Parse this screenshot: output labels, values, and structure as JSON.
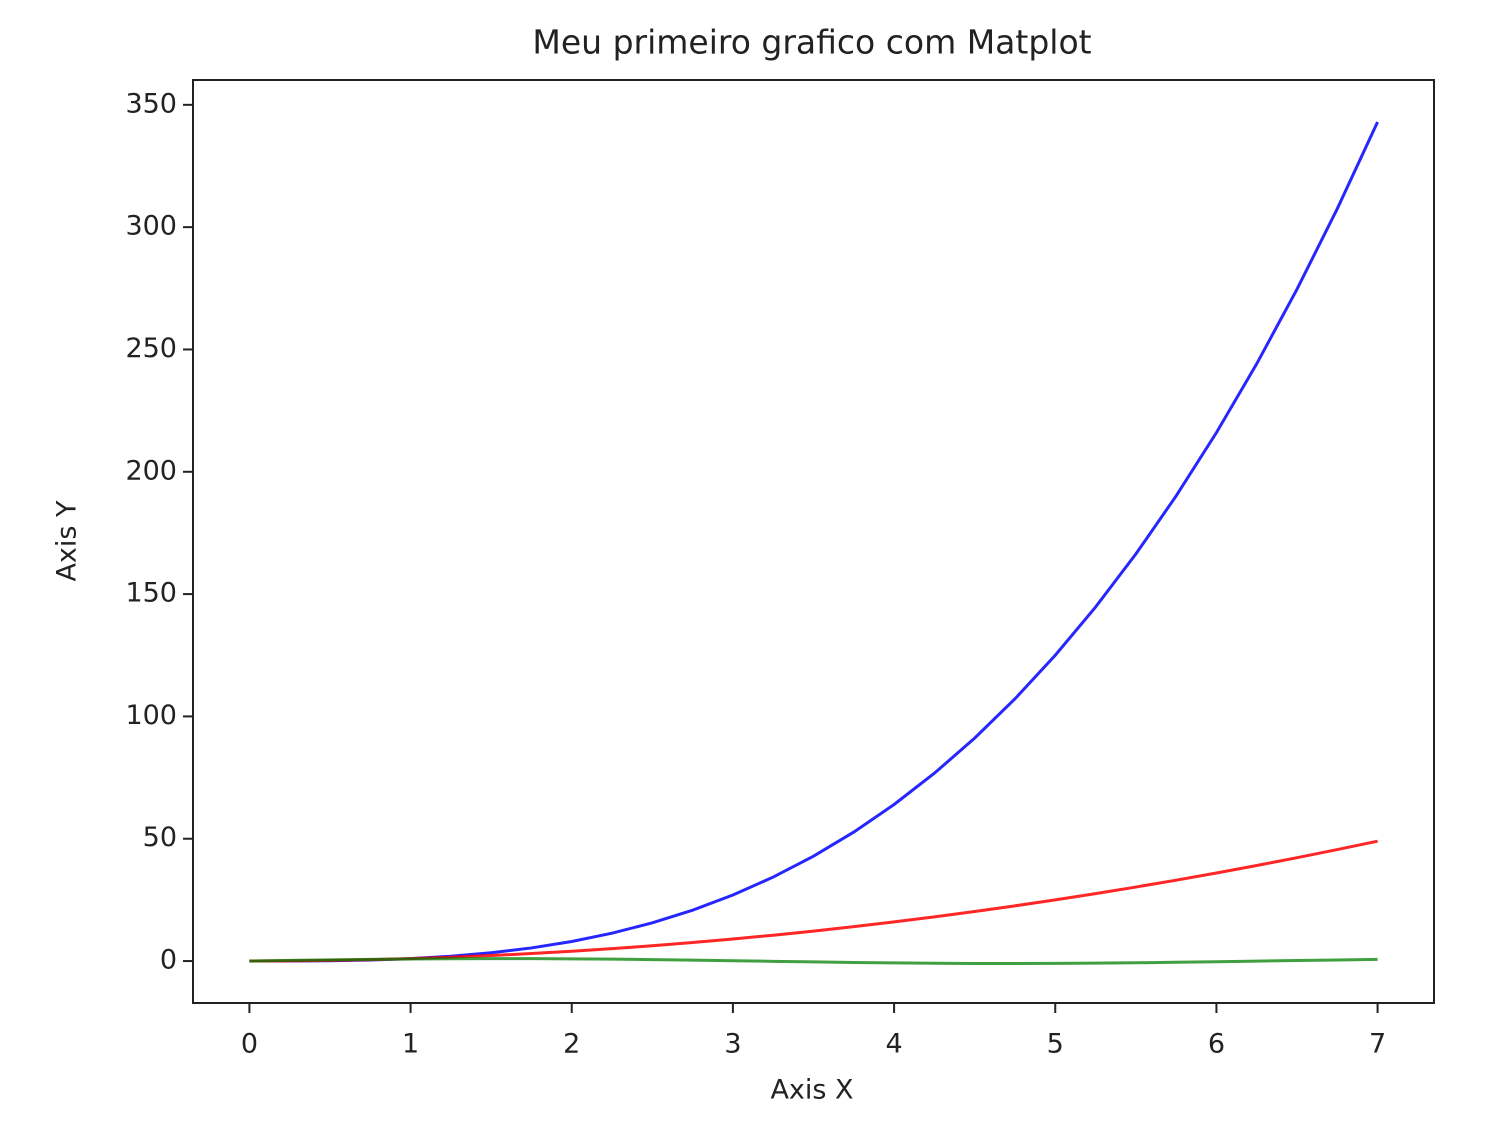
{
  "chart_data": {
    "type": "line",
    "title": "Meu primeiro grafico com Matplot",
    "x_label": "Axis X",
    "y_label": "Axis Y",
    "x": [
      0,
      0.25,
      0.5,
      0.75,
      1,
      1.25,
      1.5,
      1.75,
      2,
      2.25,
      2.5,
      2.75,
      3,
      3.25,
      3.5,
      3.75,
      4,
      4.25,
      4.5,
      4.75,
      5,
      5.25,
      5.5,
      5.75,
      6,
      6.25,
      6.5,
      6.75,
      7
    ],
    "series": [
      {
        "color": "#0000ff",
        "values": [
          0,
          0.02,
          0.13,
          0.42,
          1,
          1.95,
          3.38,
          5.36,
          8,
          11.39,
          15.63,
          20.8,
          27,
          34.33,
          42.88,
          52.73,
          64,
          76.77,
          91.13,
          107.17,
          125,
          144.7,
          166.38,
          190.11,
          216,
          244.14,
          274.63,
          307.55,
          343
        ]
      },
      {
        "color": "#ff0000",
        "values": [
          0,
          0.06,
          0.25,
          0.56,
          1,
          1.56,
          2.25,
          3.06,
          4,
          5.06,
          6.25,
          7.56,
          9,
          10.56,
          12.25,
          14.06,
          16,
          18.06,
          20.25,
          22.56,
          25,
          27.56,
          30.25,
          33.06,
          36,
          39.06,
          42.25,
          45.56,
          49
        ]
      },
      {
        "color": "#008000",
        "values": [
          0,
          0.25,
          0.48,
          0.68,
          0.84,
          0.95,
          1.0,
          0.98,
          0.91,
          0.78,
          0.6,
          0.38,
          0.14,
          -0.11,
          -0.35,
          -0.57,
          -0.76,
          -0.89,
          -0.98,
          -1.0,
          -0.96,
          -0.86,
          -0.71,
          -0.51,
          -0.28,
          -0.03,
          0.22,
          0.45,
          0.66
        ]
      }
    ],
    "xlim": [
      -0.35,
      7.35
    ],
    "xticks": [
      0,
      1,
      2,
      3,
      4,
      5,
      6,
      7
    ],
    "ylim": [
      -17.15,
      360.15
    ],
    "yticks": [
      0,
      50,
      100,
      150,
      200,
      250,
      300,
      350
    ]
  }
}
